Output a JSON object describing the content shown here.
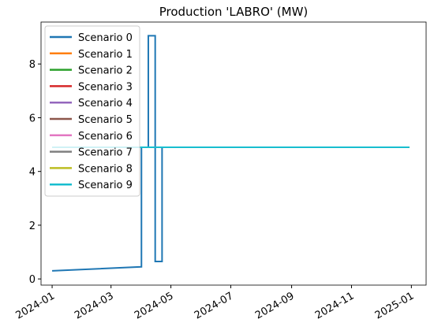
{
  "chart_data": {
    "type": "line",
    "title": "Production 'LABRO' (MW)",
    "xlim": [
      -11.3,
      381
    ],
    "xticks": [
      {
        "value": 0,
        "label": "2024-01"
      },
      {
        "value": 60,
        "label": "2024-03"
      },
      {
        "value": 121,
        "label": "2024-05"
      },
      {
        "value": 182,
        "label": "2024-07"
      },
      {
        "value": 244,
        "label": "2024-09"
      },
      {
        "value": 305,
        "label": "2024-11"
      },
      {
        "value": 366,
        "label": "2025-01"
      }
    ],
    "ylim": [
      -0.23,
      9.56
    ],
    "yticks": [
      0,
      2,
      4,
      6,
      8
    ],
    "legend": "upper left",
    "series": [
      {
        "name": "Scenario 0",
        "color": "#1f77b4",
        "x": [
          0,
          91,
          91,
          98,
          98,
          105,
          105,
          112,
          112,
          364
        ],
        "values": [
          0.3,
          0.45,
          4.9,
          4.9,
          9.05,
          9.05,
          0.65,
          0.65,
          4.9,
          4.9
        ]
      },
      {
        "name": "Scenario 1",
        "color": "#ff7f0e",
        "x": [
          0,
          364
        ],
        "values": [
          4.9,
          4.9
        ]
      },
      {
        "name": "Scenario 2",
        "color": "#2ca02c",
        "x": [
          0,
          364
        ],
        "values": [
          4.9,
          4.9
        ]
      },
      {
        "name": "Scenario 3",
        "color": "#d62728",
        "x": [
          0,
          364
        ],
        "values": [
          4.9,
          4.9
        ]
      },
      {
        "name": "Scenario 4",
        "color": "#9467bd",
        "x": [
          0,
          364
        ],
        "values": [
          4.9,
          4.9
        ]
      },
      {
        "name": "Scenario 5",
        "color": "#8c564b",
        "x": [
          0,
          364
        ],
        "values": [
          4.9,
          4.9
        ]
      },
      {
        "name": "Scenario 6",
        "color": "#e377c2",
        "x": [
          0,
          364
        ],
        "values": [
          4.9,
          4.9
        ]
      },
      {
        "name": "Scenario 7",
        "color": "#7f7f7f",
        "x": [
          0,
          364
        ],
        "values": [
          4.9,
          4.9
        ]
      },
      {
        "name": "Scenario 8",
        "color": "#bcbd22",
        "x": [
          0,
          364
        ],
        "values": [
          4.9,
          4.9
        ]
      },
      {
        "name": "Scenario 9",
        "color": "#17becf",
        "x": [
          0,
          364
        ],
        "values": [
          4.9,
          4.9
        ]
      }
    ]
  }
}
